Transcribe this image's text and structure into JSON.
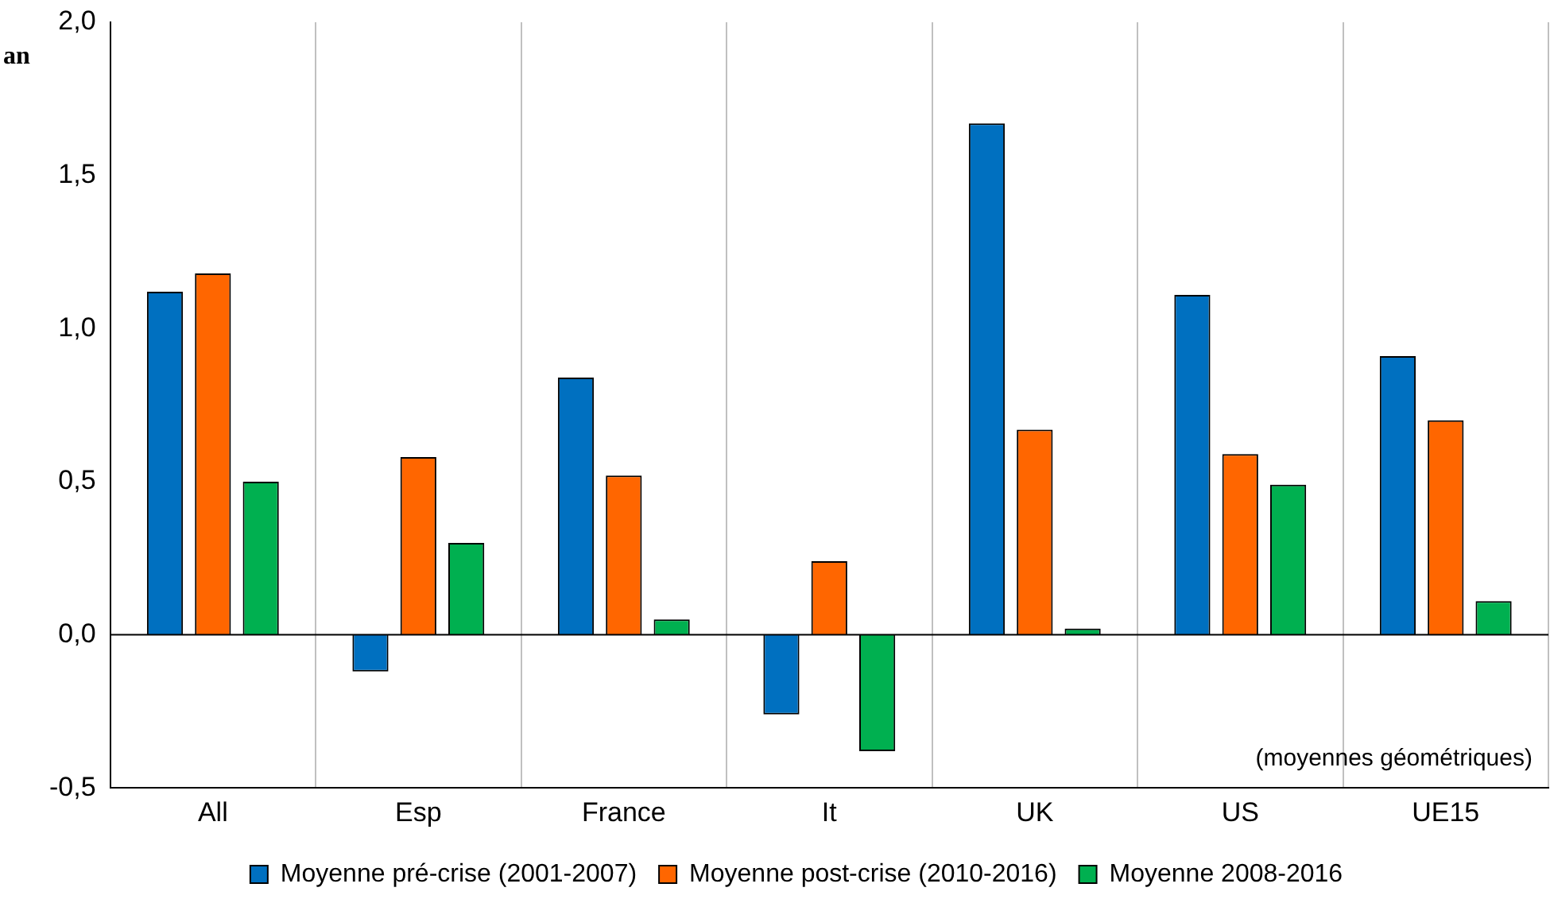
{
  "chart_data": {
    "type": "bar",
    "ylabel": "an",
    "categories": [
      "All",
      "Esp",
      "France",
      "It",
      "UK",
      "US",
      "UE15"
    ],
    "series": [
      {
        "name": "Moyenne pré-crise (2001-2007)",
        "color": "#0070c0",
        "values": [
          1.12,
          -0.12,
          0.84,
          -0.26,
          1.67,
          1.11,
          0.91
        ]
      },
      {
        "name": "Moyenne post-crise (2010-2016)",
        "color": "#ff6600",
        "values": [
          1.18,
          0.58,
          0.52,
          0.24,
          0.67,
          0.59,
          0.7
        ]
      },
      {
        "name": "Moyenne 2008-2016",
        "color": "#00b050",
        "values": [
          0.5,
          0.3,
          0.05,
          -0.38,
          0.02,
          0.49,
          0.11
        ]
      }
    ],
    "ylim": [
      -0.5,
      2.0
    ],
    "yticks": [
      {
        "value": -0.5,
        "label": "-0,5"
      },
      {
        "value": 0,
        "label": "0,0"
      },
      {
        "value": 0.5,
        "label": "0,5"
      },
      {
        "value": 1.0,
        "label": "1,0"
      },
      {
        "value": 1.5,
        "label": "1,5"
      },
      {
        "value": 2.0,
        "label": "2,0"
      }
    ],
    "ref_lines": [
      {
        "axis": "y",
        "value": 0,
        "color": "#000000"
      }
    ],
    "annotations": [
      "(moyennes géométriques)"
    ],
    "grid": "x",
    "legend": "bottom"
  }
}
